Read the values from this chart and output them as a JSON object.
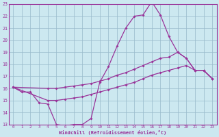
{
  "background_color": "#cce8f0",
  "grid_color": "#99bbcc",
  "line_color": "#993399",
  "marker": "D",
  "marker_size": 2.0,
  "line_width": 0.9,
  "xlim": [
    -0.5,
    23.5
  ],
  "ylim": [
    13,
    23
  ],
  "xtick_labels": [
    "0",
    "1",
    "2",
    "3",
    "4",
    "5",
    "6",
    "7",
    "8",
    "9",
    "10",
    "11",
    "12",
    "13",
    "14",
    "15",
    "16",
    "17",
    "18",
    "19",
    "20",
    "21",
    "22",
    "23"
  ],
  "xtick_pos": [
    0,
    1,
    2,
    3,
    4,
    5,
    6,
    7,
    8,
    9,
    10,
    11,
    12,
    13,
    14,
    15,
    16,
    17,
    18,
    19,
    20,
    21,
    22,
    23
  ],
  "ytick_pos": [
    13,
    14,
    15,
    16,
    17,
    18,
    19,
    20,
    21,
    22,
    23
  ],
  "xlabel": "Windchill (Refroidissement éolien,°C)",
  "curves": [
    {
      "x": [
        0,
        1,
        2,
        3,
        4,
        5,
        6,
        7,
        8,
        9,
        10,
        11,
        12,
        13,
        14,
        15,
        16,
        17,
        18,
        19,
        20,
        21,
        22,
        23
      ],
      "y": [
        16.1,
        15.7,
        15.7,
        14.8,
        14.7,
        13.0,
        12.9,
        13.0,
        13.0,
        13.5,
        16.5,
        17.8,
        19.5,
        21.0,
        22.0,
        22.1,
        23.2,
        22.1,
        20.3,
        19.0,
        18.5,
        17.5,
        17.5,
        16.8
      ]
    },
    {
      "x": [
        0,
        4,
        5,
        6,
        7,
        8,
        9,
        10,
        11,
        12,
        13,
        14,
        15,
        16,
        17,
        18,
        19,
        20,
        21,
        22,
        23
      ],
      "y": [
        16.1,
        16.0,
        16.0,
        16.1,
        16.2,
        16.3,
        16.4,
        16.6,
        16.8,
        17.1,
        17.3,
        17.6,
        17.9,
        18.2,
        18.5,
        18.6,
        19.0,
        18.5,
        17.5,
        17.5,
        16.8
      ]
    },
    {
      "x": [
        0,
        4,
        5,
        6,
        7,
        8,
        9,
        10,
        11,
        12,
        13,
        14,
        15,
        16,
        17,
        18,
        19,
        20,
        21,
        22,
        23
      ],
      "y": [
        16.1,
        15.0,
        15.0,
        15.1,
        15.2,
        15.3,
        15.5,
        15.7,
        15.9,
        16.1,
        16.3,
        16.5,
        16.8,
        17.1,
        17.3,
        17.5,
        17.7,
        17.9,
        17.5,
        17.5,
        16.8
      ]
    }
  ]
}
